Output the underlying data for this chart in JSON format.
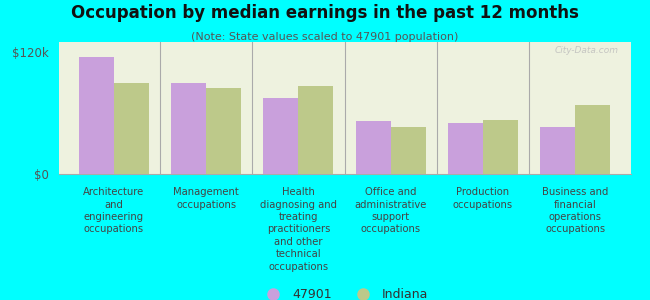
{
  "title": "Occupation by median earnings in the past 12 months",
  "subtitle": "(Note: State values scaled to 47901 population)",
  "background_color": "#00FFFF",
  "plot_bg_color": "#eef2df",
  "categories": [
    "Architecture\nand\nengineering\noccupations",
    "Management\noccupations",
    "Health\ndiagnosing and\ntreating\npractitioners\nand other\ntechnical\noccupations",
    "Office and\nadministrative\nsupport\noccupations",
    "Production\noccupations",
    "Business and\nfinancial\noperations\noccupations"
  ],
  "values_47901": [
    115000,
    90000,
    75000,
    52000,
    50000,
    46000
  ],
  "values_indiana": [
    90000,
    85000,
    87000,
    46000,
    53000,
    68000
  ],
  "color_47901": "#c9a0dc",
  "color_indiana": "#bdc98a",
  "ylim": [
    0,
    130000
  ],
  "ytick_labels": [
    "$0",
    "$120k"
  ],
  "ytick_vals": [
    0,
    120000
  ],
  "legend_47901": "47901",
  "legend_indiana": "Indiana",
  "watermark": "City-Data.com",
  "bar_width": 0.38
}
